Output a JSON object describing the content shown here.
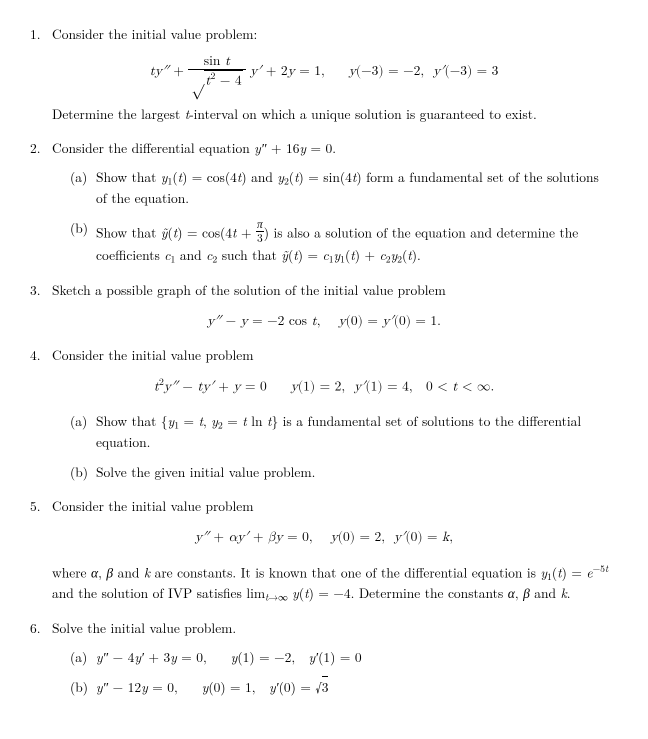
{
  "page": {
    "background": "#ffffff",
    "text_color": "#000000",
    "font_family": "Computer Modern / Latin Modern serif",
    "base_fontsize_pt": 10.5
  },
  "problems": [
    {
      "num": "1.",
      "intro": "Consider the initial value problem:",
      "equation_html": "<span class=\"it\">ty″</span> + <span class=\"frac\"><span class=\"nu\">sin <span class=\"it\">t</span></span><span class=\"de\"><span style=\"font-size:1.15em\">√</span><span class=\"sqrt\"><span class=\"it\">t</span><sup>2</sup> − 4</span></span></span> <span class=\"it\">y′</span> + 2<span class=\"it\">y</span> = 1,<span class=\"sp\"></span><span class=\"it\">y</span>(−3) = −2,&nbsp;&nbsp;<span class=\"it\">y′</span>(−3) = 3",
      "after": "Determine the largest <span class=\"it\">t</span>-interval on which a unique solution is guaranteed to exist."
    },
    {
      "num": "2.",
      "intro": "Consider the differential equation <span class=\"it\">y″</span> + 16<span class=\"it\">y</span> = 0.",
      "subs": [
        {
          "label": "(a)",
          "html": "Show that <span class=\"it\">y</span><sub class=\"s\">1</sub>(<span class=\"it\">t</span>) = cos(4<span class=\"it\">t</span>) and <span class=\"it\">y</span><sub class=\"s\">2</sub>(<span class=\"it\">t</span>) = sin(4<span class=\"it\">t</span>) form a fundamental set of the solutions of the equation."
        },
        {
          "label": "(b)",
          "html": "Show that <span class=\"it\">ỹ</span>(<span class=\"it\">t</span>) = cos(4<span class=\"it\">t</span> + <span class=\"frac\" style=\"font-size:0.85em;vertical-align:-0.35em\"><span class=\"nu\" style=\"padding:0 1px\"><span class=\"it\">π</span></span><span class=\"de\" style=\"padding:0 1px\">3</span></span>) is also a solution of the equation and determine the coefficients <span class=\"it\">c</span><sub class=\"s\">1</sub> and <span class=\"it\">c</span><sub class=\"s\">2</sub> such that <span class=\"it\">ỹ</span>(<span class=\"it\">t</span>) = <span class=\"it\">c</span><sub class=\"s\">1</sub><span class=\"it\">y</span><sub class=\"s\">1</sub>(<span class=\"it\">t</span>) + <span class=\"it\">c</span><sub class=\"s\">2</sub><span class=\"it\">y</span><sub class=\"s\">2</sub>(<span class=\"it\">t</span>)."
        }
      ]
    },
    {
      "num": "3.",
      "intro": "Sketch a possible graph of the solution of the initial value problem",
      "equation_html": "<span class=\"it\">y″</span> − <span class=\"it\">y</span> = −2 cos <span class=\"it\">t</span>,<span class=\"sp2\"></span><span class=\"it\">y</span>(0) = <span class=\"it\">y′</span>(0) = 1."
    },
    {
      "num": "4.",
      "intro": "Consider the initial value problem",
      "equation_html": "<span class=\"it\">t</span><sup>2</sup><span class=\"it\">y″</span> − <span class=\"it\">ty′</span> + <span class=\"it\">y</span> = 0<span class=\"sp\"></span><span class=\"it\">y</span>(1) = 2,&nbsp;&nbsp;<span class=\"it\">y′</span>(1) = 4,&nbsp;&nbsp;&nbsp;0 &lt; <span class=\"it\">t</span> &lt; ∞.",
      "subs": [
        {
          "label": "(a)",
          "html": "Show that {<span class=\"it\">y</span><sub class=\"s\">1</sub> = <span class=\"it\">t</span>, <span class=\"it\">y</span><sub class=\"s\">2</sub> = <span class=\"it\">t</span> ln <span class=\"it\">t</span>} is a fundamental set of solutions to the differential equation."
        },
        {
          "label": "(b)",
          "html": "Solve the given initial value problem."
        }
      ]
    },
    {
      "num": "5.",
      "intro": "Consider the initial value problem",
      "equation_html": "<span class=\"it\">y″</span> + <span class=\"it\">αy′</span> + <span class=\"it\">βy</span> = 0,<span class=\"sp2\"></span><span class=\"it\">y</span>(0) = 2,&nbsp;&nbsp;<span class=\"it\">y′</span>(0) = <span class=\"it\">k</span>,",
      "after": "where <span class=\"it\">α</span>, <span class=\"it\">β</span> and <span class=\"it\">k</span> are constants. It is known that one of the differential equation is <span class=\"it\">y</span><sub class=\"s\">1</sub>(<span class=\"it\">t</span>) = <span class=\"it\">e</span><sup>−5<span class=\"it\">t</span></sup> and the solution of IVP satisfies lim<sub class=\"s\"><span class=\"it\">t</span>→∞</sub> <span class=\"it\">y</span>(<span class=\"it\">t</span>) = −4. Determine the constants <span class=\"it\">α</span>, <span class=\"it\">β</span> and <span class=\"it\">k</span>."
    },
    {
      "num": "6.",
      "intro": "Solve the initial value problem.",
      "subs": [
        {
          "label": "(a)",
          "html": "<span class=\"it\">y″</span> − 4<span class=\"it\">y′</span> + 3<span class=\"it\">y</span> = 0,<span class=\"sp\"></span><span class=\"it\">y</span>(1) = −2,&nbsp;&nbsp;<span class=\"it\">y′</span>(1) = 0"
        },
        {
          "label": "(b)",
          "html": "<span class=\"it\">y″</span> − 12<span class=\"it\">y</span> = 0,<span class=\"sp\"></span><span class=\"it\">y</span>(0) = 1,&nbsp;&nbsp;<span class=\"it\">y′</span>(0) = √<span style=\"border-top:1px solid #000\">3</span>"
        }
      ]
    }
  ]
}
